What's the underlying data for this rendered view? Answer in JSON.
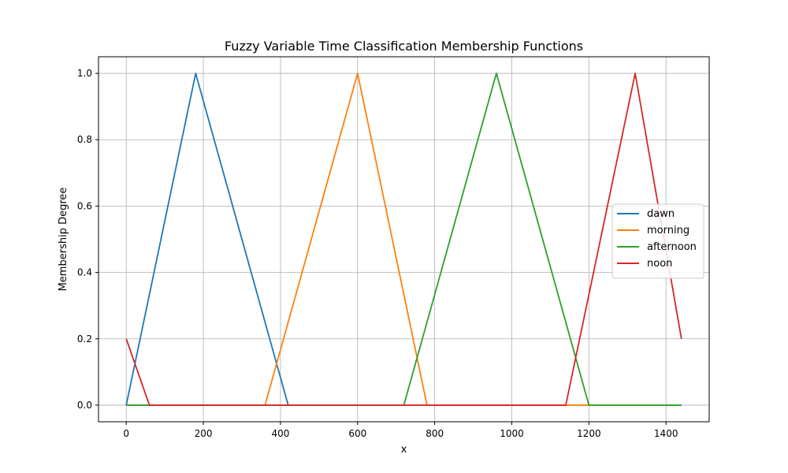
{
  "chart_data": {
    "type": "line",
    "title": "Fuzzy Variable Time Classification Membership Functions",
    "xlabel": "x",
    "ylabel": "Membership Degree",
    "xlim": [
      -72,
      1512
    ],
    "ylim": [
      -0.05,
      1.05
    ],
    "x_ticks": [
      0,
      200,
      400,
      600,
      800,
      1000,
      1200,
      1400
    ],
    "y_ticks": [
      0.0,
      0.2,
      0.4,
      0.6,
      0.8,
      1.0
    ],
    "x_tick_labels": [
      "0",
      "200",
      "400",
      "600",
      "800",
      "1000",
      "1200",
      "1400"
    ],
    "y_tick_labels": [
      "0.0",
      "0.2",
      "0.4",
      "0.6",
      "0.8",
      "1.0"
    ],
    "grid": true,
    "legend_position": "center-right",
    "series": [
      {
        "name": "dawn",
        "color": "#1f77b4",
        "points": [
          [
            0,
            0
          ],
          [
            180,
            1
          ],
          [
            420,
            0
          ]
        ]
      },
      {
        "name": "morning",
        "color": "#ff7f0e",
        "points": [
          [
            0,
            0
          ],
          [
            360,
            0
          ],
          [
            600,
            1
          ],
          [
            780,
            0
          ],
          [
            1440,
            0
          ]
        ]
      },
      {
        "name": "afternoon",
        "color": "#2ca02c",
        "points": [
          [
            0,
            0
          ],
          [
            720,
            0
          ],
          [
            960,
            1
          ],
          [
            1200,
            0
          ],
          [
            1440,
            0
          ]
        ]
      },
      {
        "name": "noon",
        "color": "#d62728",
        "points": [
          [
            0,
            0.2
          ],
          [
            60,
            0
          ],
          [
            1140,
            0
          ],
          [
            1320,
            1
          ],
          [
            1440,
            0.2
          ]
        ]
      }
    ]
  }
}
